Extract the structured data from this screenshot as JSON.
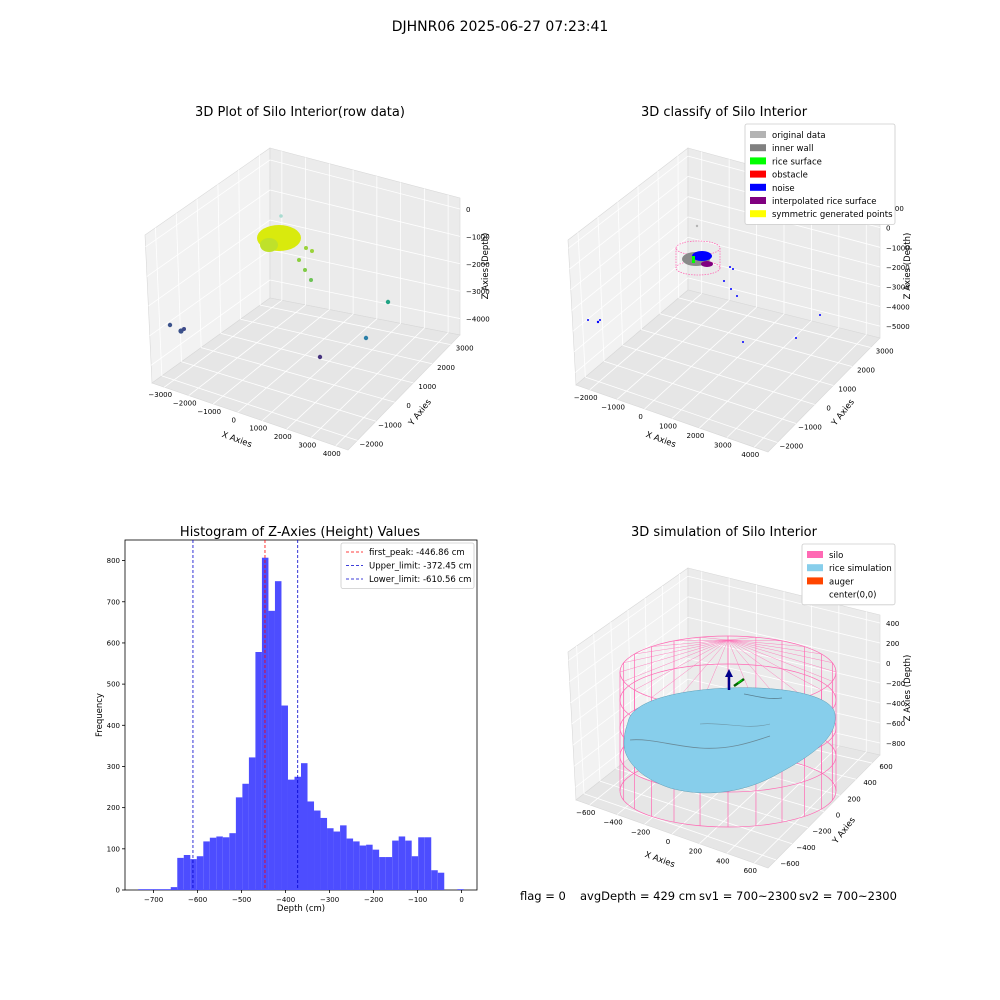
{
  "figure_title": "DJHNR06 2025-06-27 07:23:41",
  "status": {
    "flag": "flag = 0",
    "avg_depth": "avgDepth = 429 cm",
    "sv1": "sv1 = 700~2300",
    "sv2": "sv2 = 700~2300"
  },
  "colors": {
    "hist_bar": "#4d4dff",
    "first_peak": "#ff0000",
    "limits": "#0000cd",
    "silo": "#ff69b4",
    "rice_simulation": "#87ceeb",
    "auger": "#ff4500",
    "original_data": "#b3b3b3",
    "inner_wall": "#808080",
    "rice_surface": "#00ff00",
    "obstacle": "#ff0000",
    "noise": "#0000ff",
    "interpolated_rice_surface": "#800080",
    "symmetric_generated_points": "#ffff00"
  },
  "chart_data": [
    {
      "type": "scatter",
      "projection": "3d",
      "title": "3D Plot of Silo Interior(row data)",
      "xlabel": "X Axies",
      "ylabel": "Y Axies",
      "zlabel": "Z Axies (Depth)",
      "x_ticks": [
        "−3000",
        "−2000",
        "−1000",
        "0",
        "1000",
        "2000",
        "3000",
        "4000"
      ],
      "y_ticks": [
        "−2000",
        "−1000",
        "0",
        "1000",
        "2000",
        "3000"
      ],
      "z_ticks": [
        "0",
        "−1000",
        "−2000",
        "−3000",
        "−4000"
      ],
      "grid": true
    },
    {
      "type": "scatter",
      "projection": "3d",
      "title": "3D classify of Silo Interior",
      "xlabel": "X Axies",
      "ylabel": "Y Axies",
      "zlabel": "Z Axies (Depth)",
      "x_ticks": [
        "−2000",
        "−1000",
        "0",
        "1000",
        "2000",
        "3000",
        "4000"
      ],
      "y_ticks": [
        "−2000",
        "−1000",
        "0",
        "1000",
        "2000",
        "3000"
      ],
      "z_ticks": [
        "1000",
        "0",
        "−1000",
        "−2000",
        "−3000",
        "−4000",
        "−5000"
      ],
      "legend_position": "top-right",
      "legend": [
        {
          "label": "original data",
          "color": "#b3b3b3"
        },
        {
          "label": "inner wall",
          "color": "#808080"
        },
        {
          "label": "rice surface",
          "color": "#00ff00"
        },
        {
          "label": "obstacle",
          "color": "#ff0000"
        },
        {
          "label": "noise",
          "color": "#0000ff"
        },
        {
          "label": "interpolated rice surface",
          "color": "#800080"
        },
        {
          "label": "symmetric generated points",
          "color": "#ffff00"
        }
      ],
      "grid": true
    },
    {
      "type": "bar",
      "title": "Histogram of Z-Axies (Height) Values",
      "xlabel": "Depth (cm)",
      "ylabel": "Frequency",
      "xlim": [
        -765,
        35
      ],
      "ylim": [
        0,
        850
      ],
      "x_ticks": [
        -700,
        -600,
        -500,
        -400,
        -300,
        -200,
        -100,
        0
      ],
      "x_tick_labels": [
        "−700",
        "−600",
        "−500",
        "−400",
        "−300",
        "−200",
        "−100",
        "0"
      ],
      "y_ticks": [
        0,
        100,
        200,
        300,
        400,
        500,
        600,
        700,
        800
      ],
      "bin_width": 14.8,
      "bin_starts": [
        -735,
        -720.2,
        -705.4,
        -690.6,
        -675.8,
        -661,
        -646.2,
        -631.4,
        -616.6,
        -601.8,
        -587,
        -572.2,
        -557.4,
        -542.6,
        -527.8,
        -513,
        -498.2,
        -483.4,
        -468.6,
        -453.8,
        -439,
        -424.2,
        -409.4,
        -394.6,
        -379.8,
        -365,
        -350.2,
        -335.4,
        -320.6,
        -305.8,
        -291,
        -276.2,
        -261.4,
        -246.6,
        -231.8,
        -217,
        -202.2,
        -187.4,
        -172.6,
        -157.8,
        -143,
        -128.2,
        -113.4,
        -98.6,
        -83.8,
        -69,
        -54.2,
        -39.4,
        -24.6,
        -9.8
      ],
      "values": [
        2,
        2,
        2,
        2,
        2,
        7,
        78,
        85,
        75,
        82,
        118,
        127,
        130,
        128,
        138,
        225,
        258,
        322,
        578,
        807,
        678,
        750,
        448,
        268,
        275,
        308,
        215,
        193,
        175,
        150,
        142,
        157,
        125,
        118,
        108,
        110,
        98,
        80,
        80,
        120,
        130,
        120,
        82,
        128,
        128,
        48,
        42,
        0,
        0,
        2
      ],
      "lines": [
        {
          "label": "first_peak: -446.86 cm",
          "x": -446.86,
          "color": "#ff0000",
          "style": "dashed"
        },
        {
          "label": "Upper_limit: -372.45 cm",
          "x": -372.45,
          "color": "#0000cd",
          "style": "dashed"
        },
        {
          "label": "Lower_limit: -610.56 cm",
          "x": -610.56,
          "color": "#0000cd",
          "style": "dashed"
        }
      ],
      "legend_position": "top-right",
      "grid": false
    },
    {
      "type": "surface",
      "projection": "3d",
      "title": "3D simulation of Silo Interior",
      "xlabel": "X Axies",
      "ylabel": "Y Axies",
      "zlabel": "Z Axies (Depth)",
      "x_ticks": [
        "−600",
        "−400",
        "−200",
        "0",
        "200",
        "400",
        "600"
      ],
      "y_ticks": [
        "−600",
        "−400",
        "−200",
        "0",
        "200",
        "400",
        "600"
      ],
      "z_ticks": [
        "400",
        "200",
        "0",
        "−200",
        "−400",
        "−600",
        "−800"
      ],
      "legend_position": "top-right",
      "legend": [
        {
          "label": "silo",
          "color": "#ff69b4"
        },
        {
          "label": "rice simulation",
          "color": "#87ceeb"
        },
        {
          "label": "auger",
          "color": "#ff4500"
        },
        {
          "label": "center(0,0)",
          "color": "#ffffff"
        }
      ],
      "grid": true
    }
  ]
}
